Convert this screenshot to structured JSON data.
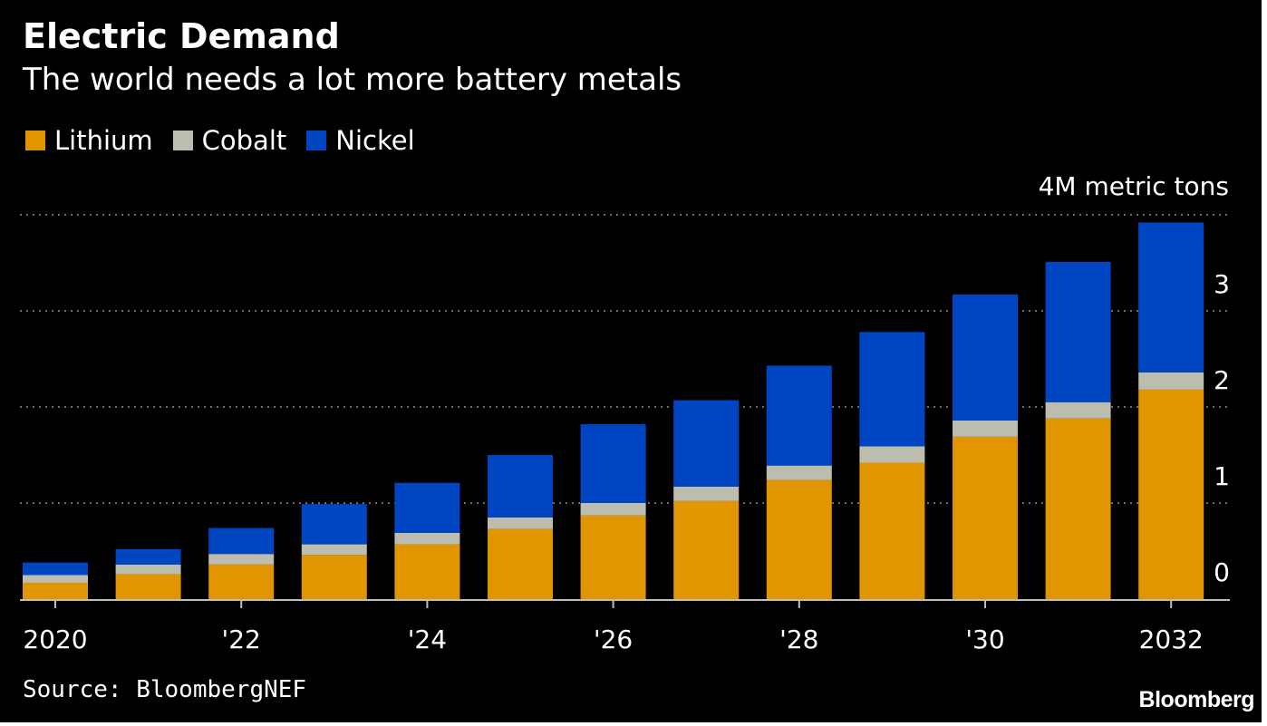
{
  "title": "Electric Demand",
  "subtitle": "The world needs a lot more battery metals",
  "source": "Source: BloombergNEF",
  "brand": "Bloomberg",
  "colors": {
    "background": "#000000",
    "lithium": "#e19500",
    "cobalt": "#bcbdaf",
    "nickel": "#0046c2",
    "grid": "#8f8f8f",
    "axis": "#bdbdbd"
  },
  "chart_data": {
    "type": "bar",
    "stacked": true,
    "title": "Electric Demand",
    "subtitle": "The world needs a lot more battery metals",
    "unit_label": "4M metric tons",
    "x": [
      2020,
      2021,
      2022,
      2023,
      2024,
      2025,
      2026,
      2027,
      2028,
      2029,
      2030,
      2031,
      2032
    ],
    "x_tick_labels": [
      {
        "x": 2020,
        "label": "2020"
      },
      {
        "x": 2022,
        "label": "'22"
      },
      {
        "x": 2024,
        "label": "'24"
      },
      {
        "x": 2026,
        "label": "'26"
      },
      {
        "x": 2028,
        "label": "'28"
      },
      {
        "x": 2030,
        "label": "'30"
      },
      {
        "x": 2032,
        "label": "2032"
      }
    ],
    "y_ticks": [
      0,
      1,
      2,
      3
    ],
    "ylim": [
      0,
      4
    ],
    "y_axis_side": "right",
    "grid": true,
    "legend_position": "top-left",
    "series": [
      {
        "name": "Lithium",
        "values": [
          0.17,
          0.26,
          0.36,
          0.46,
          0.57,
          0.73,
          0.87,
          1.02,
          1.24,
          1.42,
          1.69,
          1.88,
          2.18
        ]
      },
      {
        "name": "Cobalt",
        "values": [
          0.08,
          0.1,
          0.11,
          0.11,
          0.12,
          0.12,
          0.13,
          0.15,
          0.15,
          0.17,
          0.17,
          0.17,
          0.18
        ]
      },
      {
        "name": "Nickel",
        "values": [
          0.13,
          0.16,
          0.27,
          0.42,
          0.52,
          0.65,
          0.82,
          0.9,
          1.04,
          1.19,
          1.31,
          1.46,
          1.56
        ]
      }
    ]
  }
}
